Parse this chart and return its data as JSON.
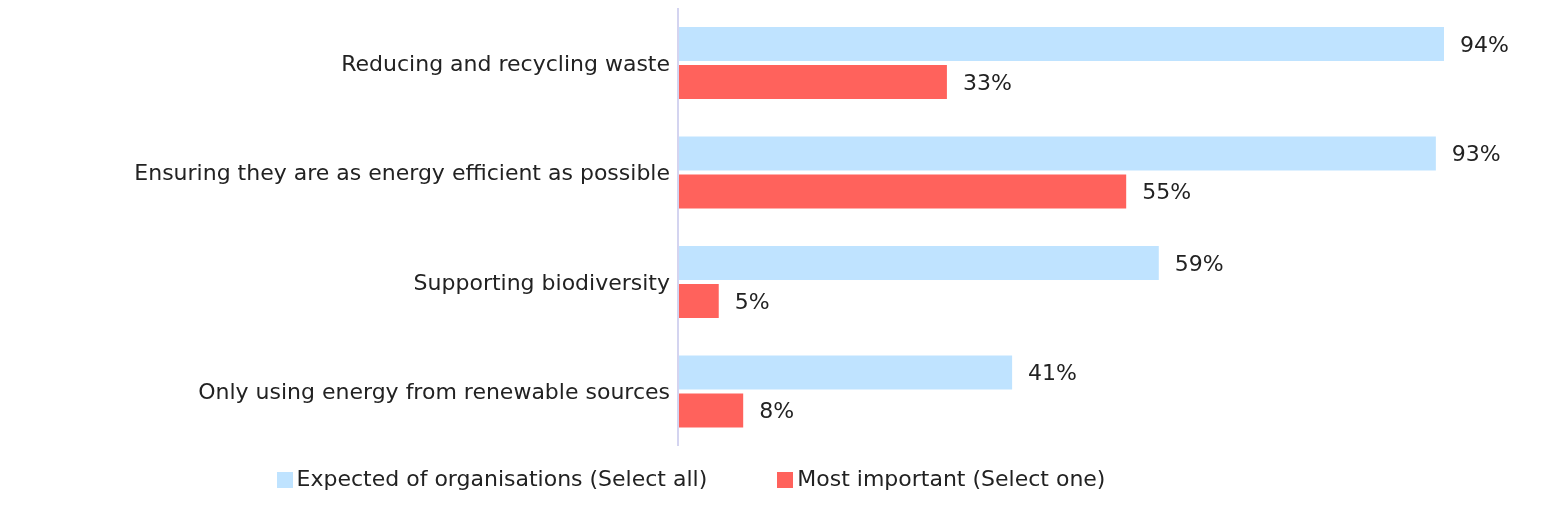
{
  "chart_data": {
    "type": "bar",
    "orientation": "horizontal",
    "categories": [
      "Reducing and recycling waste",
      "Ensuring they are as energy efficient as possible",
      "Supporting biodiversity",
      "Only using energy from renewable sources"
    ],
    "series": [
      {
        "name": "Expected of organisations (Select all)",
        "color": "#bfe3ff",
        "values": [
          94,
          93,
          59,
          41
        ],
        "value_labels": [
          "94%",
          "93%",
          "59%",
          "41%"
        ]
      },
      {
        "name": "Most important (Select one)",
        "color": "#ff625c",
        "values": [
          33,
          55,
          5,
          8
        ],
        "value_labels": [
          "33%",
          "55%",
          "5%",
          "8%"
        ]
      }
    ],
    "legend": "bottom",
    "grid": false
  }
}
